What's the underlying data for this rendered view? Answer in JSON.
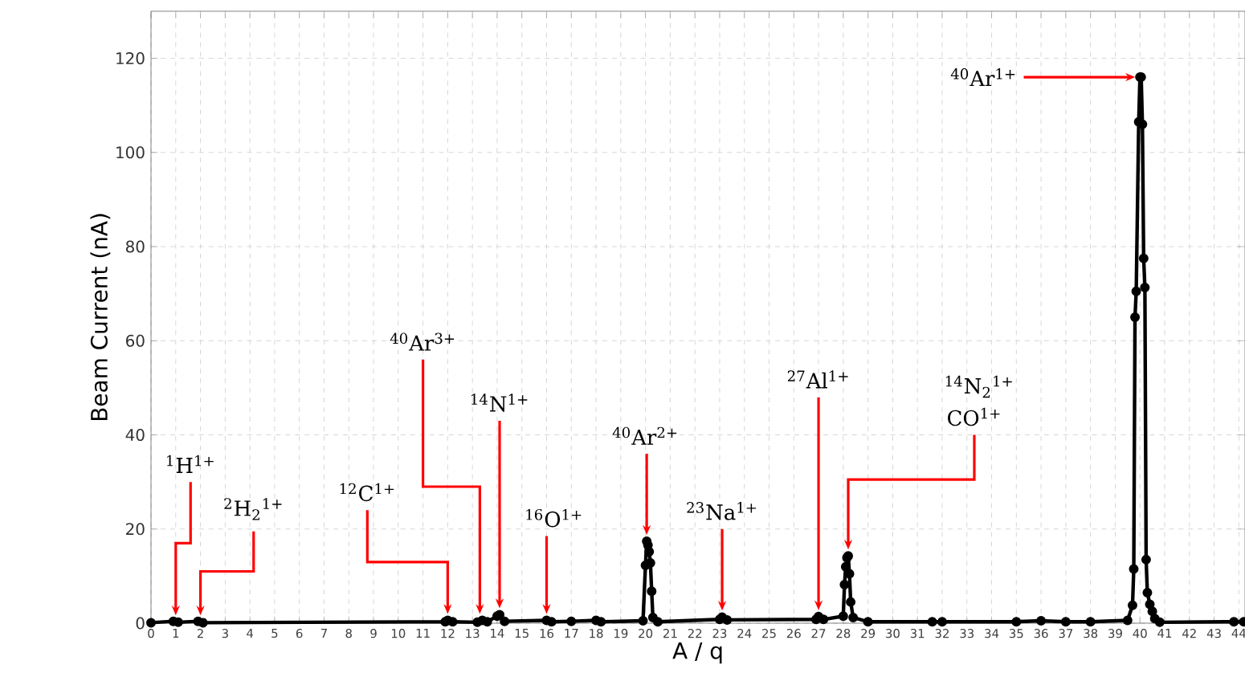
{
  "chart_data": {
    "type": "line",
    "xlabel": "A / q",
    "ylabel": "Beam Current (nA)",
    "x": [
      0,
      0.9,
      1.1,
      1.9,
      2.1,
      11.9,
      12.0,
      12.2,
      13.2,
      13.4,
      13.6,
      14.0,
      14.1,
      14.3,
      16.0,
      16.2,
      17.0,
      18.0,
      18.2,
      19.9,
      20.0,
      20.05,
      20.1,
      20.15,
      20.2,
      20.25,
      20.3,
      20.5,
      23.0,
      23.1,
      23.3,
      26.9,
      27.0,
      27.2,
      28.0,
      28.05,
      28.1,
      28.15,
      28.2,
      28.25,
      28.3,
      28.4,
      29.0,
      31.6,
      32.0,
      35.0,
      36.0,
      37.0,
      38.0,
      39.5,
      39.7,
      39.75,
      39.8,
      39.85,
      39.95,
      40.0,
      40.05,
      40.1,
      40.15,
      40.2,
      40.25,
      40.3,
      40.4,
      40.5,
      40.6,
      40.8,
      43.8,
      44.2
    ],
    "series": [
      {
        "color": "#000000",
        "values": [
          0.1,
          0.4,
          0.2,
          0.4,
          0.1,
          0.3,
          0.6,
          0.3,
          0.2,
          0.6,
          0.3,
          1.5,
          1.8,
          0.4,
          0.6,
          0.3,
          0.4,
          0.6,
          0.3,
          0.5,
          12.3,
          17.4,
          16.6,
          15.2,
          12.8,
          6.8,
          1.2,
          0.3,
          0.8,
          1.3,
          0.7,
          0.8,
          1.4,
          0.8,
          1.5,
          8.2,
          12.0,
          13.9,
          14.3,
          10.5,
          4.5,
          1.2,
          0.3,
          0.3,
          0.3,
          0.3,
          0.5,
          0.3,
          0.3,
          0.6,
          3.8,
          11.5,
          65.0,
          70.5,
          106.5,
          116,
          116,
          106,
          77.5,
          71.3,
          13.5,
          6.5,
          4,
          2.5,
          1,
          0.2,
          0.3,
          0.3
        ]
      }
    ],
    "xlim": [
      0,
      44.25
    ],
    "ylim": [
      0,
      130
    ],
    "xticks": [
      0,
      1,
      2,
      3,
      4,
      5,
      6,
      7,
      8,
      9,
      10,
      11,
      12,
      13,
      14,
      15,
      16,
      17,
      18,
      19,
      20,
      21,
      22,
      23,
      24,
      25,
      26,
      27,
      28,
      29,
      30,
      31,
      32,
      33,
      34,
      35,
      36,
      37,
      38,
      39,
      40,
      41,
      42,
      43,
      44
    ],
    "yticks": [
      0,
      20,
      40,
      60,
      80,
      100,
      120
    ],
    "grid": true,
    "marker": "circle",
    "line_style": "solid",
    "annotations": [
      {
        "text": "$^{1}$H$^{1+}$",
        "x": 1,
        "y": 0.3
      },
      {
        "text": "$^{2}$H$_{2}$$^{1+}$",
        "x": 2,
        "y": 0.3
      },
      {
        "text": "$^{12}$C$^{1+}$",
        "x": 12,
        "y": 0.6
      },
      {
        "text": "$^{40}$Ar$^{3+}$",
        "x": 13.3,
        "y": 0.6
      },
      {
        "text": "$^{14}$N$^{1+}$",
        "x": 14.1,
        "y": 1.8
      },
      {
        "text": "$^{16}$O$^{1+}$",
        "x": 16,
        "y": 0.6
      },
      {
        "text": "$^{40}$Ar$^{2+}$",
        "x": 20.05,
        "y": 17.4
      },
      {
        "text": "$^{23}$Na$^{1+}$",
        "x": 23.1,
        "y": 1.3
      },
      {
        "text": "$^{27}$Al$^{1+}$",
        "x": 27,
        "y": 1.4
      },
      "$^{14}$N$_{2}$$^{1+}$",
      {
        "text": "CO$^{1+}$",
        "x": 28.2,
        "y": 14.3
      },
      {
        "text": "$^{40}$Ar$^{1+}$",
        "x": 40,
        "y": 116
      }
    ]
  }
}
